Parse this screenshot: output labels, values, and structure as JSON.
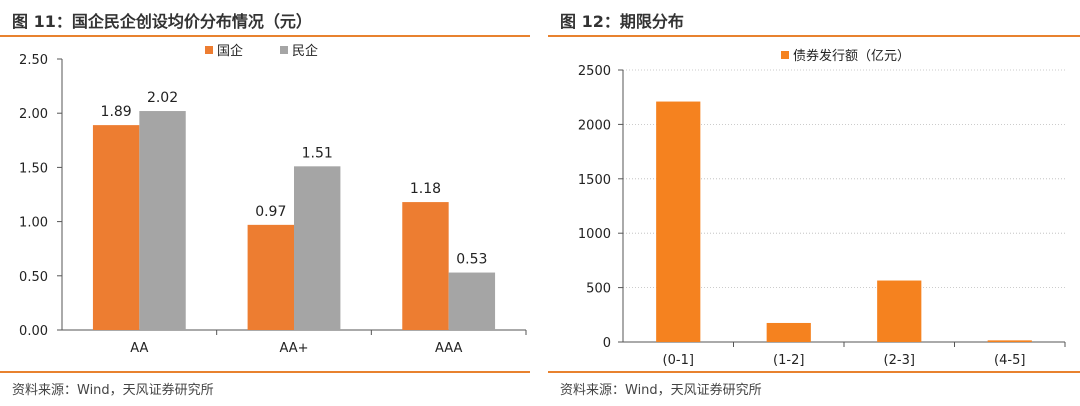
{
  "left": {
    "title": "图 11：国企民企创设均价分布情况（元）",
    "source": "资料来源：Wind，天风证券研究所"
  },
  "right": {
    "title": "图 12：期限分布",
    "source": "资料来源：Wind，天风证券研究所"
  },
  "accent_color": "#e8822f",
  "chart_data": [
    {
      "type": "bar",
      "categories": [
        "AA",
        "AA+",
        "AAA"
      ],
      "series": [
        {
          "name": "国企",
          "values": [
            1.89,
            0.97,
            1.18
          ],
          "color": "#ed7d31"
        },
        {
          "name": "民企",
          "values": [
            2.02,
            1.51,
            0.53
          ],
          "color": "#a5a5a5"
        }
      ],
      "ylim": [
        0,
        2.5
      ],
      "yticks": [
        "0.00",
        "0.50",
        "1.00",
        "1.50",
        "2.00",
        "2.50"
      ],
      "data_labels": true,
      "grid": false,
      "legend": "top-center"
    },
    {
      "type": "bar",
      "categories": [
        "(0-1]",
        "(1-2]",
        "(2-3]",
        "(4-5]"
      ],
      "series": [
        {
          "name": "债券发行额（亿元）",
          "values": [
            2210,
            175,
            565,
            15
          ],
          "color": "#f5821f"
        }
      ],
      "ylim": [
        0,
        2500
      ],
      "yticks": [
        "0",
        "500",
        "1000",
        "1500",
        "2000",
        "2500"
      ],
      "grid": true,
      "legend": "top-center"
    }
  ]
}
